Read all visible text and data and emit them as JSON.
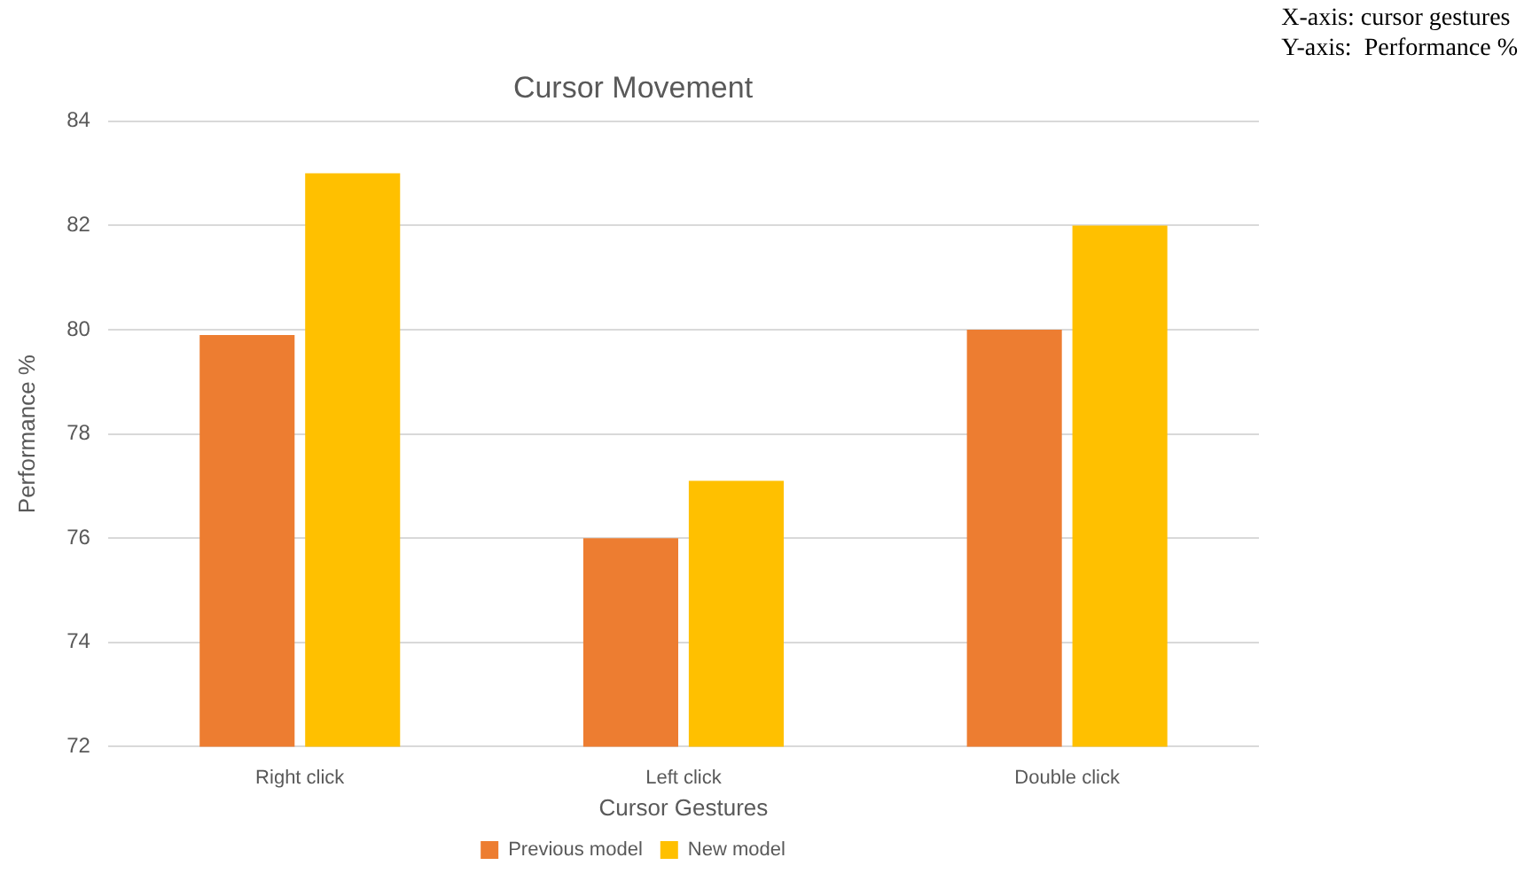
{
  "chart_data": {
    "type": "bar",
    "title": "Cursor Movement",
    "xlabel": "Cursor Gestures",
    "ylabel": "Performance %",
    "annotations": [
      "X-axis: cursor gestures",
      "Y-axis:  Performance %"
    ],
    "categories": [
      "Right click",
      "Left click",
      "Double click"
    ],
    "series": [
      {
        "name": "Previous model",
        "color": "#ed7d31",
        "values": [
          79.9,
          76,
          80.0
        ]
      },
      {
        "name": "New model",
        "color": "#ffc000",
        "values": [
          83,
          77.1,
          82
        ]
      }
    ],
    "ylim": [
      72,
      84
    ],
    "yticks": [
      72,
      74,
      76,
      78,
      80,
      82,
      84
    ],
    "grid": "y",
    "legend": "bottom"
  }
}
